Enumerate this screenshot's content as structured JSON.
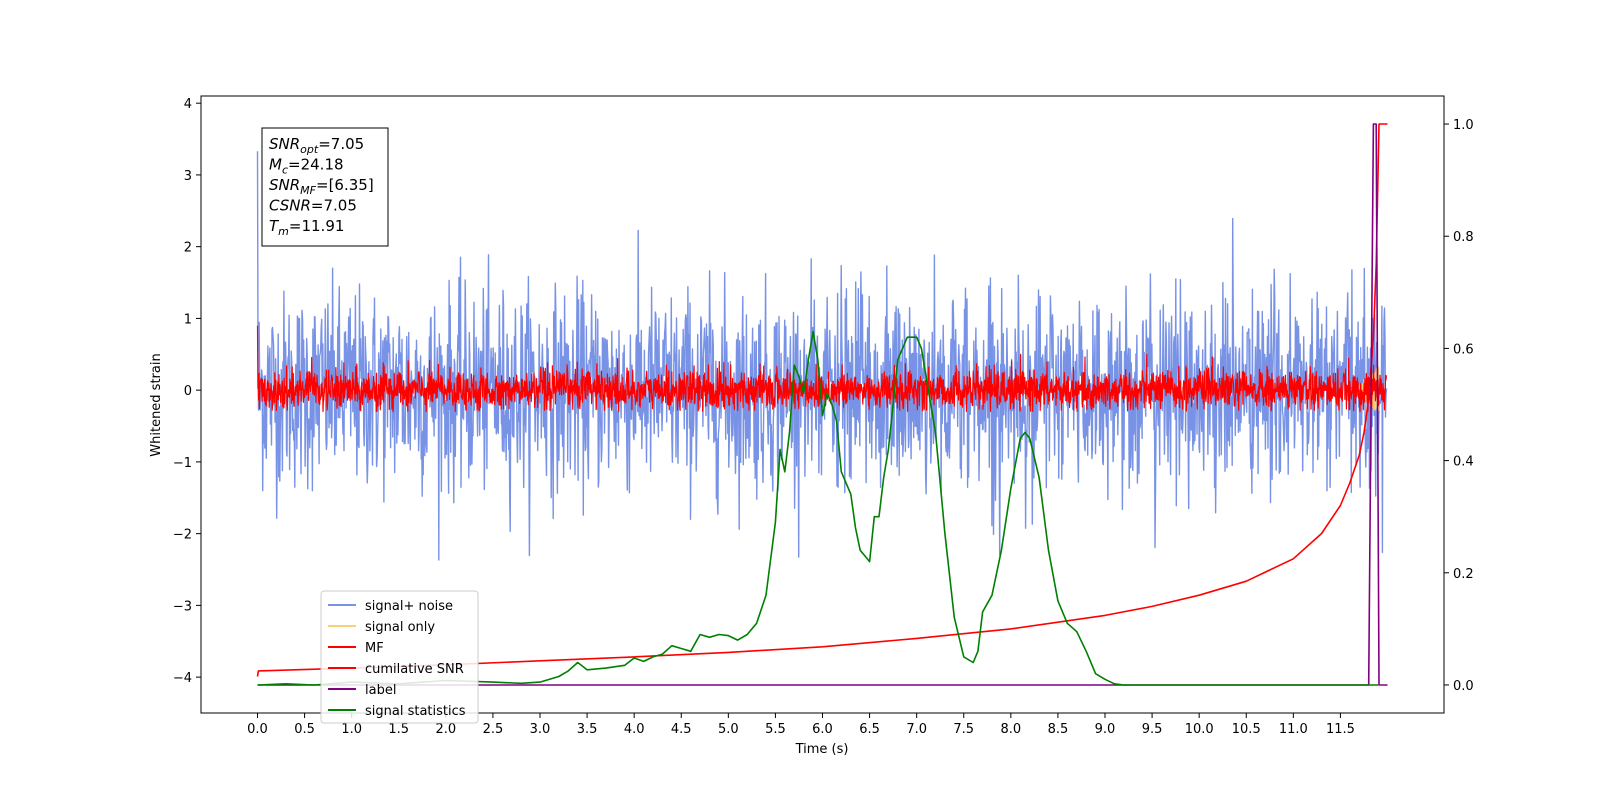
{
  "chart_data": {
    "type": "line",
    "xlabel": "Time (s)",
    "ylabel": "Whitened strain",
    "y2label": "",
    "xlim": [
      -0.6,
      12.6
    ],
    "ylim": [
      -4.5,
      4.1
    ],
    "y2lim": [
      -0.05,
      1.05
    ],
    "x_ticks": [
      "0.0",
      "0.5",
      "1.0",
      "1.5",
      "2.0",
      "2.5",
      "3.0",
      "3.5",
      "4.0",
      "4.5",
      "5.0",
      "5.5",
      "6.0",
      "6.5",
      "7.0",
      "7.5",
      "8.0",
      "8.5",
      "9.0",
      "9.5",
      "10.0",
      "10.5",
      "11.0",
      "11.5"
    ],
    "y_ticks": [
      "4",
      "3",
      "2",
      "1",
      "0",
      "−1",
      "−2",
      "−3",
      "−4"
    ],
    "y2_ticks": [
      "1.0",
      "0.8",
      "0.6",
      "0.4",
      "0.2",
      "0.0"
    ],
    "grid": false,
    "legend_position": "lower-left",
    "annotation": {
      "lines": [
        {
          "name": "SNR",
          "sub": "opt",
          "value": "=7.05"
        },
        {
          "name": "M",
          "sub": "c",
          "value": "=24.18"
        },
        {
          "name": "SNR",
          "sub": "MF",
          "value": "=[6.35]"
        },
        {
          "name": "CSNR",
          "sub": "",
          "value": "=7.05"
        },
        {
          "name": "T",
          "sub": "m",
          "value": "=11.91"
        }
      ]
    },
    "series": [
      {
        "name": "signal+ noise",
        "color": "#7893e6",
        "axis": "left",
        "kind": "noise",
        "x_range": [
          0.0,
          11.99
        ],
        "amplitude_sd": 0.68,
        "peak_range": [
          -2.55,
          3.7
        ]
      },
      {
        "name": "signal only",
        "color": "#f5d17a",
        "axis": "left",
        "kind": "chirp",
        "x_range": [
          11.6,
          11.91
        ],
        "max_amplitude": 0.35
      },
      {
        "name": "MF",
        "color": "#ff0000",
        "axis": "left",
        "kind": "noise",
        "x_range": [
          0.0,
          11.99
        ],
        "amplitude_sd": 0.14,
        "peak_range": [
          -0.3,
          1.0
        ]
      },
      {
        "name": "cumilative SNR",
        "color": "#ff0000",
        "axis": "right",
        "x": [
          0.0,
          0.01,
          1.0,
          2.0,
          3.0,
          4.0,
          5.0,
          6.0,
          7.0,
          8.0,
          9.0,
          9.5,
          10.0,
          10.5,
          11.0,
          11.3,
          11.5,
          11.6,
          11.7,
          11.75,
          11.8,
          11.85,
          11.88,
          11.91,
          12.0
        ],
        "y": [
          0.015,
          0.025,
          0.03,
          0.036,
          0.043,
          0.05,
          0.058,
          0.068,
          0.083,
          0.1,
          0.124,
          0.14,
          0.16,
          0.185,
          0.225,
          0.27,
          0.32,
          0.36,
          0.41,
          0.45,
          0.51,
          0.62,
          0.75,
          1.0,
          1.0
        ]
      },
      {
        "name": "label",
        "color": "#800080",
        "axis": "right",
        "x": [
          0.0,
          11.8,
          11.85,
          11.88,
          11.91,
          12.0
        ],
        "y": [
          0.0,
          0.0,
          1.0,
          1.0,
          0.0,
          0.0
        ]
      },
      {
        "name": "signal statistics",
        "color": "#008000",
        "axis": "right",
        "x": [
          0.0,
          0.3,
          0.6,
          1.0,
          1.5,
          2.0,
          2.5,
          2.8,
          3.0,
          3.2,
          3.3,
          3.4,
          3.5,
          3.7,
          3.9,
          4.0,
          4.1,
          4.2,
          4.3,
          4.4,
          4.5,
          4.6,
          4.7,
          4.8,
          4.9,
          5.0,
          5.1,
          5.2,
          5.3,
          5.4,
          5.5,
          5.55,
          5.6,
          5.65,
          5.7,
          5.75,
          5.8,
          5.85,
          5.9,
          5.95,
          6.0,
          6.05,
          6.1,
          6.15,
          6.2,
          6.3,
          6.35,
          6.4,
          6.45,
          6.5,
          6.55,
          6.6,
          6.65,
          6.7,
          6.75,
          6.8,
          6.9,
          7.0,
          7.05,
          7.1,
          7.2,
          7.3,
          7.4,
          7.5,
          7.6,
          7.65,
          7.7,
          7.8,
          7.9,
          8.0,
          8.1,
          8.15,
          8.2,
          8.3,
          8.4,
          8.5,
          8.6,
          8.7,
          8.8,
          8.9,
          9.0,
          9.1,
          9.2,
          9.5,
          10.0,
          11.0,
          11.9
        ],
        "y": [
          0.0,
          0.002,
          0.0,
          0.005,
          0.002,
          0.008,
          0.005,
          0.003,
          0.005,
          0.015,
          0.025,
          0.04,
          0.027,
          0.03,
          0.035,
          0.048,
          0.042,
          0.05,
          0.055,
          0.07,
          0.065,
          0.06,
          0.09,
          0.085,
          0.09,
          0.088,
          0.08,
          0.09,
          0.11,
          0.16,
          0.29,
          0.42,
          0.38,
          0.45,
          0.57,
          0.55,
          0.52,
          0.58,
          0.63,
          0.58,
          0.48,
          0.52,
          0.5,
          0.47,
          0.38,
          0.34,
          0.28,
          0.24,
          0.23,
          0.22,
          0.3,
          0.3,
          0.37,
          0.42,
          0.5,
          0.58,
          0.62,
          0.62,
          0.6,
          0.55,
          0.45,
          0.27,
          0.12,
          0.05,
          0.04,
          0.06,
          0.13,
          0.16,
          0.24,
          0.35,
          0.44,
          0.45,
          0.44,
          0.37,
          0.24,
          0.15,
          0.11,
          0.095,
          0.06,
          0.02,
          0.01,
          0.002,
          0.0,
          0.0,
          0.0,
          0.0,
          0.0
        ]
      }
    ]
  }
}
